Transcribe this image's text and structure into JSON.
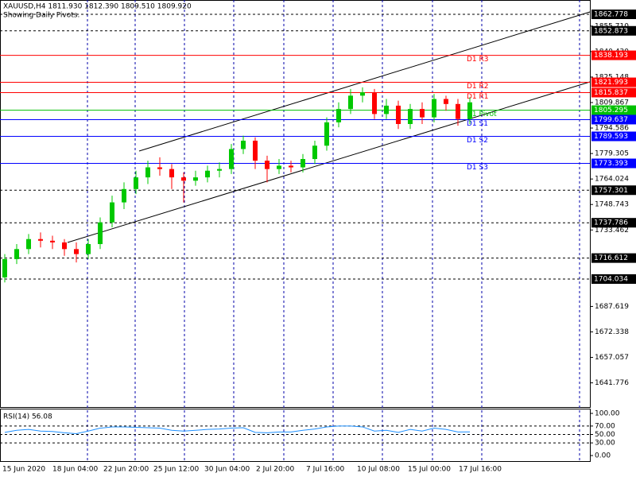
{
  "chart_data": {
    "type": "candlestick",
    "title": "XAUUSD,H4  1811.930 1812.390 1809.510 1809.920",
    "subtitle": "Showing Daily Pivots.",
    "ylim": [
      1627.28,
      1871.36
    ],
    "yticks": [
      {
        "value": 1855.71,
        "label": "1855.710"
      },
      {
        "value": 1840.43,
        "label": "1840.430"
      },
      1825.148,
      1809.867,
      1794.586,
      1779.305,
      1764.024,
      1748.743,
      1733.462,
      1687.619,
      1672.338,
      1657.057,
      1641.776
    ],
    "pivots": [
      {
        "name": "D1 R3",
        "value": 1838.193,
        "color": "#ff0000"
      },
      {
        "name": "D1 R2",
        "value": 1821.993,
        "color": "#ff0000"
      },
      {
        "name": "D1 R1",
        "value": 1815.837,
        "color": "#ff0000"
      },
      {
        "name": "D1 Pivot",
        "value": 1805.295,
        "color": "#00c000"
      },
      {
        "name": "D1 S1",
        "value": 1799.637,
        "color": "#0000ff"
      },
      {
        "name": "D1 S2",
        "value": 1789.593,
        "color": "#0000ff"
      },
      {
        "name": "D1 S3",
        "value": 1773.393,
        "color": "#0000ff"
      }
    ],
    "levels": [
      1862.778,
      1852.873,
      1757.301,
      1737.786,
      1716.612,
      1704.034
    ],
    "x_labels": [
      "15 Jun 2020",
      "18 Jun 04:00",
      "22 Jun 20:00",
      "25 Jun 12:00",
      "30 Jun 04:00",
      "2 Jul 20:00",
      "7 Jul 16:00",
      "10 Jul 08:00",
      "15 Jul 00:00",
      "17 Jul 16:00"
    ],
    "up_color": "#00c800",
    "down_color": "#ff0000",
    "candles": {
      "open": [
        1705,
        1716,
        1722,
        1728,
        1727,
        1726,
        1722,
        1719,
        1725,
        1738,
        1750,
        1758,
        1765,
        1771,
        1770,
        1765,
        1763,
        1765,
        1769,
        1770,
        1782,
        1787,
        1775,
        1770,
        1772,
        1771,
        1776,
        1784,
        1798,
        1806,
        1814,
        1816,
        1803,
        1808,
        1797,
        1806,
        1801,
        1812,
        1809,
        1800
      ],
      "high": [
        1719,
        1725,
        1731,
        1732,
        1730,
        1728,
        1726,
        1728,
        1741,
        1754,
        1762,
        1769,
        1775,
        1777,
        1773,
        1768,
        1769,
        1772,
        1774,
        1785,
        1790,
        1789,
        1778,
        1776,
        1775,
        1779,
        1787,
        1801,
        1810,
        1818,
        1819,
        1818,
        1812,
        1811,
        1809,
        1810,
        1815,
        1814,
        1812,
        1813
      ],
      "low": [
        1702,
        1713,
        1719,
        1723,
        1722,
        1718,
        1714,
        1716,
        1722,
        1735,
        1746,
        1755,
        1761,
        1766,
        1758,
        1750,
        1760,
        1762,
        1765,
        1767,
        1779,
        1770,
        1762,
        1767,
        1768,
        1768,
        1773,
        1781,
        1795,
        1803,
        1810,
        1800,
        1800,
        1794,
        1794,
        1797,
        1798,
        1805,
        1796,
        1797
      ],
      "close": [
        1716,
        1722,
        1728,
        1727,
        1726,
        1722,
        1719,
        1725,
        1738,
        1750,
        1758,
        1765,
        1771,
        1770,
        1765,
        1763,
        1765,
        1769,
        1770,
        1782,
        1787,
        1775,
        1770,
        1772,
        1771,
        1776,
        1784,
        1798,
        1806,
        1814,
        1816,
        1803,
        1808,
        1797,
        1806,
        1801,
        1812,
        1809,
        1800,
        1810
      ]
    },
    "rsi": {
      "title": "RSI(14) 56.08",
      "color": "#1e90ff",
      "ylim": [
        0,
        100
      ],
      "yticks": [
        {
          "value": 100,
          "label": "100.00"
        },
        {
          "value": 70,
          "label": "70.00"
        },
        {
          "value": 50,
          "label": "50.00"
        },
        {
          "value": 30,
          "label": "30.00"
        },
        {
          "value": 0,
          "label": "0.00"
        }
      ],
      "values": [
        55,
        60,
        62,
        58,
        57,
        54,
        52,
        58,
        65,
        68,
        68,
        67,
        66,
        65,
        60,
        58,
        60,
        62,
        63,
        65,
        66,
        55,
        54,
        56,
        56,
        60,
        63,
        68,
        70,
        70,
        68,
        58,
        60,
        55,
        62,
        58,
        65,
        62,
        56,
        56.08
      ]
    }
  }
}
